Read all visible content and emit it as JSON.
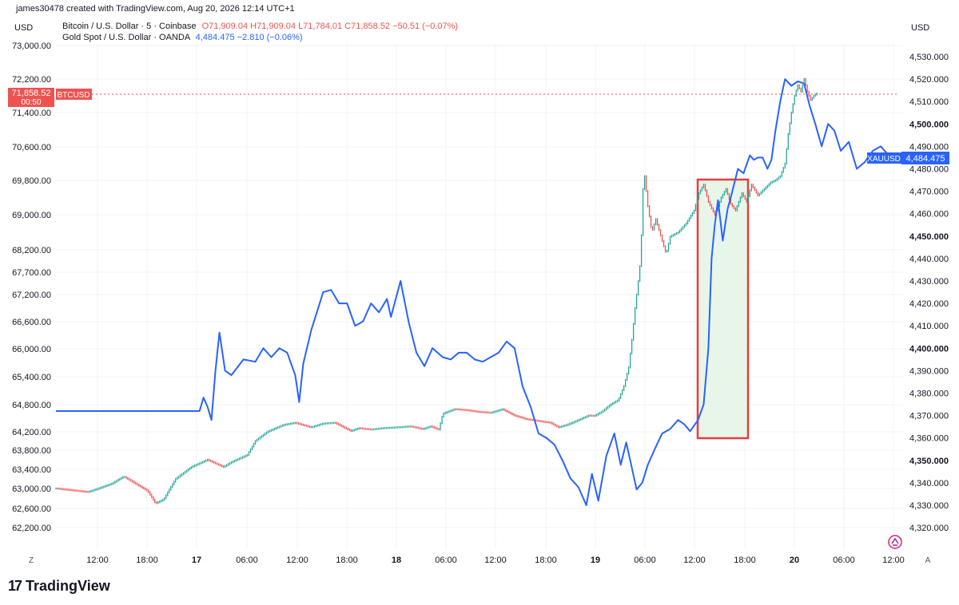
{
  "header": {
    "created_by": "james30478 created with TradingView.com, Aug 20, 2026 12:14 UTC+1",
    "btc_title": "Bitcoin / U.S. Dollar · 5 · Coinbase",
    "btc_ohlc": "O71,909.04 H71,909.04 L71,784.01 C71,858.52 −50.51 (−0.07%)",
    "gold_title": "Gold Spot / U.S. Dollar · OANDA",
    "gold_change": "4,484.475 −2.810 (−0.06%)"
  },
  "branding": {
    "logo_text": "TradingView"
  },
  "colors": {
    "btc_up": "#26a69a",
    "btc_down": "#ef5350",
    "gold_line": "#2962ff",
    "highlight_border": "#e53e3e",
    "highlight_fill": "#e8f5e9"
  },
  "chart_data": {
    "type": "line",
    "left_axis": {
      "currency": "USD",
      "ticks": [
        "73,000.00",
        "72,200.00",
        "71,400.00",
        "70,600.00",
        "69,800.00",
        "69,000.00",
        "68,200.00",
        "67,700.00",
        "67,200.00",
        "66,600.00",
        "66,000.00",
        "65,400.00",
        "64,800.00",
        "64,200.00",
        "63,800.00",
        "63,400.00",
        "63,000.00",
        "62,600.00",
        "62,200.00"
      ]
    },
    "right_axis": {
      "currency": "USD",
      "ticks": [
        "4,530.000",
        "4,520.000",
        "4,510.000",
        "4,500.000",
        "4,490.000",
        "4,480.000",
        "4,470.000",
        "4,460.000",
        "4,450.000",
        "4,440.000",
        "4,430.000",
        "4,420.000",
        "4,410.000",
        "4,400.000",
        "4,390.000",
        "4,380.000",
        "4,370.000",
        "4,360.000",
        "4,350.000",
        "4,340.000",
        "4,330.000",
        "4,320.000"
      ],
      "bold_ticks": [
        "4,500.000",
        "4,450.000",
        "4,400.000",
        "4,350.000"
      ]
    },
    "x_ticks": [
      "12:00",
      "18:00",
      "17",
      "06:00",
      "12:00",
      "18:00",
      "18",
      "06:00",
      "12:00",
      "18:00",
      "19",
      "06:00",
      "12:00",
      "18:00",
      "20",
      "06:00",
      "12:00"
    ],
    "bold_x_ticks": [
      "17",
      "18",
      "19",
      "20"
    ],
    "axis_corner_labels": {
      "left": "Z",
      "right": "A"
    },
    "series": [
      {
        "name": "Bitcoin / U.S. Dollar · 5 · Coinbase",
        "axis": "left",
        "points": [
          [
            0,
            63000
          ],
          [
            40,
            62930
          ],
          [
            50,
            62980
          ],
          [
            70,
            63100
          ],
          [
            85,
            63250
          ],
          [
            100,
            63100
          ],
          [
            115,
            62950
          ],
          [
            125,
            62700
          ],
          [
            135,
            62780
          ],
          [
            150,
            63200
          ],
          [
            170,
            63450
          ],
          [
            190,
            63600
          ],
          [
            210,
            63450
          ],
          [
            220,
            63550
          ],
          [
            240,
            63700
          ],
          [
            250,
            64000
          ],
          [
            265,
            64200
          ],
          [
            285,
            64350
          ],
          [
            300,
            64400
          ],
          [
            320,
            64300
          ],
          [
            335,
            64380
          ],
          [
            350,
            64400
          ],
          [
            370,
            64220
          ],
          [
            380,
            64280
          ],
          [
            395,
            64250
          ],
          [
            410,
            64280
          ],
          [
            430,
            64300
          ],
          [
            445,
            64320
          ],
          [
            460,
            64260
          ],
          [
            470,
            64320
          ],
          [
            480,
            64250
          ],
          [
            485,
            64600
          ],
          [
            500,
            64700
          ],
          [
            515,
            64680
          ],
          [
            530,
            64640
          ],
          [
            545,
            64620
          ],
          [
            560,
            64700
          ],
          [
            575,
            64560
          ],
          [
            590,
            64480
          ],
          [
            605,
            64440
          ],
          [
            620,
            64400
          ],
          [
            630,
            64300
          ],
          [
            640,
            64350
          ],
          [
            650,
            64420
          ],
          [
            660,
            64500
          ],
          [
            668,
            64560
          ],
          [
            675,
            64550
          ],
          [
            685,
            64650
          ],
          [
            695,
            64800
          ],
          [
            705,
            64900
          ],
          [
            712,
            65200
          ],
          [
            718,
            65600
          ],
          [
            722,
            66200
          ],
          [
            726,
            66900
          ],
          [
            730,
            67500
          ],
          [
            733,
            68000
          ],
          [
            736,
            69600
          ],
          [
            738,
            69900
          ],
          [
            742,
            69200
          ],
          [
            747,
            68600
          ],
          [
            752,
            68900
          ],
          [
            760,
            68400
          ],
          [
            765,
            68100
          ],
          [
            770,
            68500
          ],
          [
            780,
            68600
          ],
          [
            790,
            68800
          ],
          [
            800,
            69100
          ],
          [
            806,
            69500
          ],
          [
            812,
            69700
          ],
          [
            818,
            69300
          ],
          [
            826,
            69000
          ],
          [
            834,
            69400
          ],
          [
            840,
            69600
          ],
          [
            846,
            69250
          ],
          [
            852,
            69100
          ],
          [
            860,
            69500
          ],
          [
            866,
            69300
          ],
          [
            872,
            69700
          ],
          [
            880,
            69450
          ],
          [
            888,
            69600
          ],
          [
            896,
            69750
          ],
          [
            902,
            69800
          ],
          [
            908,
            69900
          ],
          [
            914,
            70200
          ],
          [
            918,
            70900
          ],
          [
            922,
            71400
          ],
          [
            926,
            71800
          ],
          [
            930,
            72050
          ],
          [
            934,
            71900
          ],
          [
            938,
            72200
          ],
          [
            942,
            71900
          ],
          [
            946,
            71700
          ],
          [
            950,
            71800
          ],
          [
            954,
            71858.52
          ]
        ]
      },
      {
        "name": "Gold Spot / U.S. Dollar · OANDA",
        "axis": "right",
        "points": [
          [
            0,
            4372
          ],
          [
            180,
            4372
          ],
          [
            185,
            4378
          ],
          [
            190,
            4374
          ],
          [
            195,
            4368
          ],
          [
            200,
            4390
          ],
          [
            205,
            4407
          ],
          [
            212,
            4390
          ],
          [
            220,
            4388
          ],
          [
            235,
            4395
          ],
          [
            250,
            4394
          ],
          [
            260,
            4400
          ],
          [
            270,
            4396
          ],
          [
            280,
            4400
          ],
          [
            290,
            4398
          ],
          [
            300,
            4388
          ],
          [
            305,
            4376
          ],
          [
            310,
            4393
          ],
          [
            320,
            4408
          ],
          [
            335,
            4425
          ],
          [
            345,
            4426
          ],
          [
            355,
            4420
          ],
          [
            365,
            4420
          ],
          [
            375,
            4410
          ],
          [
            385,
            4412
          ],
          [
            395,
            4420
          ],
          [
            405,
            4416
          ],
          [
            415,
            4422
          ],
          [
            420,
            4414
          ],
          [
            432,
            4430
          ],
          [
            442,
            4412
          ],
          [
            452,
            4398
          ],
          [
            462,
            4392
          ],
          [
            472,
            4400
          ],
          [
            485,
            4396
          ],
          [
            495,
            4395
          ],
          [
            505,
            4398
          ],
          [
            515,
            4398
          ],
          [
            525,
            4395
          ],
          [
            535,
            4394
          ],
          [
            545,
            4396
          ],
          [
            555,
            4398
          ],
          [
            565,
            4403
          ],
          [
            575,
            4400
          ],
          [
            585,
            4383
          ],
          [
            595,
            4374
          ],
          [
            605,
            4362
          ],
          [
            615,
            4360
          ],
          [
            625,
            4357
          ],
          [
            635,
            4350
          ],
          [
            645,
            4342
          ],
          [
            655,
            4338
          ],
          [
            665,
            4330
          ],
          [
            672,
            4344
          ],
          [
            680,
            4332
          ],
          [
            690,
            4352
          ],
          [
            700,
            4362
          ],
          [
            708,
            4348
          ],
          [
            715,
            4358
          ],
          [
            720,
            4350
          ],
          [
            728,
            4337
          ],
          [
            735,
            4340
          ],
          [
            742,
            4348
          ],
          [
            752,
            4356
          ],
          [
            760,
            4362
          ],
          [
            770,
            4364
          ],
          [
            780,
            4368
          ],
          [
            788,
            4366
          ],
          [
            795,
            4363
          ],
          [
            805,
            4368
          ],
          [
            812,
            4375
          ],
          [
            818,
            4400
          ],
          [
            822,
            4440
          ],
          [
            826,
            4455
          ],
          [
            830,
            4466
          ],
          [
            836,
            4448
          ],
          [
            842,
            4462
          ],
          [
            848,
            4470
          ],
          [
            855,
            4480
          ],
          [
            862,
            4478
          ],
          [
            870,
            4486
          ],
          [
            875,
            4484
          ],
          [
            880,
            4485
          ],
          [
            886,
            4485
          ],
          [
            892,
            4480
          ],
          [
            897,
            4484
          ],
          [
            902,
            4497
          ],
          [
            908,
            4510
          ],
          [
            914,
            4520
          ],
          [
            922,
            4517
          ],
          [
            930,
            4519
          ],
          [
            938,
            4518
          ],
          [
            945,
            4508
          ],
          [
            952,
            4500
          ],
          [
            960,
            4490
          ],
          [
            968,
            4500
          ],
          [
            976,
            4497
          ],
          [
            984,
            4488
          ],
          [
            994,
            4492
          ],
          [
            1004,
            4480
          ],
          [
            1014,
            4483
          ],
          [
            1024,
            4488
          ],
          [
            1034,
            4490
          ],
          [
            1044,
            4486
          ],
          [
            1054,
            4484.475
          ]
        ]
      }
    ],
    "btc_last_price_label": "71,858.52",
    "btc_countdown": "00:50",
    "btc_symbol_label": "BTCUSD",
    "gold_last_price_label": "4,484.475",
    "gold_symbol_label": "XAUUSD"
  }
}
